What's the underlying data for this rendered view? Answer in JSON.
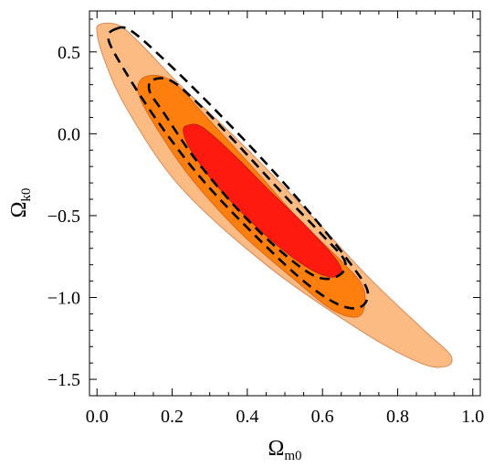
{
  "chart_data": {
    "type": "contour",
    "title": "",
    "xlabel": {
      "main": "Ω",
      "sub": "m0"
    },
    "ylabel": {
      "main": "Ω",
      "sub": "k0"
    },
    "xlim": [
      -0.02,
      1.02
    ],
    "ylim": [
      -1.6,
      0.75
    ],
    "grid": false,
    "x_ticks": [
      0.0,
      0.2,
      0.4,
      0.6,
      0.8,
      1.0
    ],
    "x_tick_labels": [
      "0.0",
      "0.2",
      "0.4",
      "0.6",
      "0.8",
      "1.0"
    ],
    "y_ticks": [
      0.5,
      0.0,
      -0.5,
      -1.0,
      -1.5
    ],
    "y_tick_labels": [
      "0.5",
      "0.0",
      "−0.5",
      "−1.0",
      "−1.5"
    ],
    "filled_regions": [
      {
        "level": "3-sigma",
        "color": "#fdbb84",
        "outline": "#d9895a",
        "points": [
          [
            0.01,
            0.67
          ],
          [
            0.06,
            0.66
          ],
          [
            0.12,
            0.54
          ],
          [
            0.22,
            0.3
          ],
          [
            0.38,
            -0.05
          ],
          [
            0.55,
            -0.45
          ],
          [
            0.72,
            -0.87
          ],
          [
            0.87,
            -1.2
          ],
          [
            0.94,
            -1.35
          ],
          [
            0.93,
            -1.42
          ],
          [
            0.86,
            -1.4
          ],
          [
            0.7,
            -1.2
          ],
          [
            0.45,
            -0.8
          ],
          [
            0.22,
            -0.32
          ],
          [
            0.08,
            0.15
          ],
          [
            0.02,
            0.45
          ],
          [
            0.0,
            0.62
          ]
        ]
      },
      {
        "level": "2-sigma",
        "color": "#ff7f0e",
        "outline": "#d9661a",
        "points": [
          [
            0.13,
            0.35
          ],
          [
            0.2,
            0.32
          ],
          [
            0.3,
            0.08
          ],
          [
            0.42,
            -0.22
          ],
          [
            0.54,
            -0.53
          ],
          [
            0.66,
            -0.8
          ],
          [
            0.71,
            -0.95
          ],
          [
            0.7,
            -1.11
          ],
          [
            0.63,
            -1.08
          ],
          [
            0.52,
            -0.88
          ],
          [
            0.38,
            -0.6
          ],
          [
            0.25,
            -0.27
          ],
          [
            0.16,
            0.03
          ],
          [
            0.11,
            0.25
          ]
        ]
      },
      {
        "level": "1-sigma",
        "color": "#ff1a10",
        "outline": "#c41a10",
        "points": [
          [
            0.24,
            0.05
          ],
          [
            0.28,
            0.04
          ],
          [
            0.36,
            -0.12
          ],
          [
            0.46,
            -0.35
          ],
          [
            0.55,
            -0.55
          ],
          [
            0.63,
            -0.75
          ],
          [
            0.65,
            -0.85
          ],
          [
            0.61,
            -0.87
          ],
          [
            0.53,
            -0.77
          ],
          [
            0.43,
            -0.58
          ],
          [
            0.32,
            -0.32
          ],
          [
            0.25,
            -0.1
          ],
          [
            0.23,
            0.01
          ]
        ]
      }
    ],
    "dashed_contours": [
      {
        "level": "outer",
        "points": [
          [
            0.05,
            0.64
          ],
          [
            0.09,
            0.63
          ],
          [
            0.18,
            0.45
          ],
          [
            0.3,
            0.18
          ],
          [
            0.45,
            -0.18
          ],
          [
            0.58,
            -0.52
          ],
          [
            0.67,
            -0.78
          ],
          [
            0.72,
            -0.96
          ],
          [
            0.7,
            -1.06
          ],
          [
            0.64,
            -1.04
          ],
          [
            0.55,
            -0.9
          ],
          [
            0.42,
            -0.62
          ],
          [
            0.28,
            -0.28
          ],
          [
            0.16,
            0.08
          ],
          [
            0.07,
            0.4
          ],
          [
            0.03,
            0.58
          ]
        ]
      },
      {
        "level": "inner",
        "points": [
          [
            0.15,
            0.33
          ],
          [
            0.2,
            0.32
          ],
          [
            0.28,
            0.16
          ],
          [
            0.38,
            -0.08
          ],
          [
            0.5,
            -0.38
          ],
          [
            0.6,
            -0.62
          ],
          [
            0.66,
            -0.78
          ],
          [
            0.64,
            -0.87
          ],
          [
            0.58,
            -0.87
          ],
          [
            0.48,
            -0.7
          ],
          [
            0.37,
            -0.45
          ],
          [
            0.26,
            -0.15
          ],
          [
            0.18,
            0.12
          ],
          [
            0.14,
            0.26
          ]
        ]
      }
    ]
  }
}
